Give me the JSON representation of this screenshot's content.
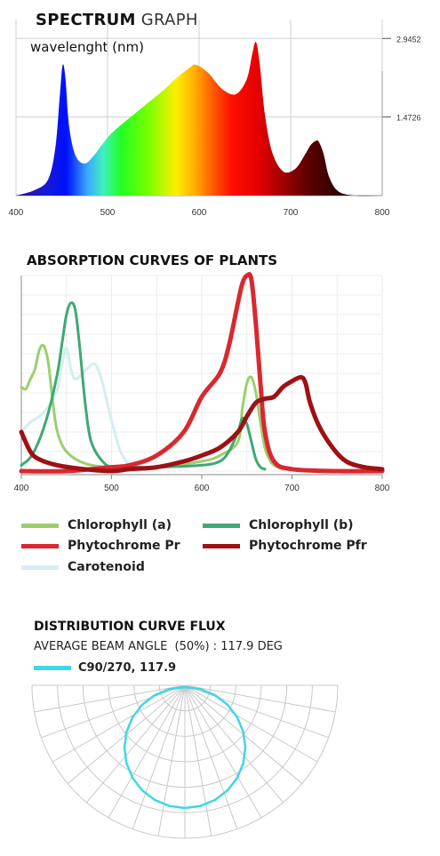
{
  "spectrum": {
    "title_bold": "SPECTRUM",
    "title_rest": " GRAPH",
    "subtitle": "wavelenght (nm)",
    "chart_data": {
      "type": "area",
      "title": "SPECTRUM GRAPH",
      "xlabel": "wavelenght (nm)",
      "xlim": [
        400,
        800
      ],
      "ylim": [
        0,
        3.3
      ],
      "grid": true,
      "x_ticks": [
        "400",
        "500",
        "600",
        "700",
        "800"
      ],
      "y_ticks": [
        {
          "value": 1.4726,
          "label": "1.4726"
        },
        {
          "value": 2.9452,
          "label": "2.9452"
        }
      ],
      "x": [
        400,
        420,
        435,
        443,
        448,
        451,
        454,
        458,
        465,
        475,
        485,
        495,
        505,
        520,
        540,
        560,
        575,
        590,
        597,
        610,
        625,
        640,
        652,
        658,
        662,
        666,
        672,
        680,
        692,
        705,
        715,
        722,
        728,
        731,
        736,
        742,
        752,
        770,
        800
      ],
      "y": [
        0,
        0.1,
        0.3,
        0.9,
        1.9,
        2.45,
        2.2,
        1.3,
        0.75,
        0.6,
        0.75,
        0.98,
        1.18,
        1.4,
        1.68,
        1.96,
        2.2,
        2.4,
        2.45,
        2.3,
        2.0,
        1.9,
        2.18,
        2.65,
        2.88,
        2.5,
        1.5,
        0.8,
        0.45,
        0.5,
        0.75,
        0.95,
        1.03,
        1.0,
        0.78,
        0.35,
        0.08,
        0,
        0
      ]
    }
  },
  "absorption": {
    "title": "ABSORPTION CURVES OF PLANTS",
    "chart_data": {
      "type": "line",
      "title": "ABSORPTION CURVES OF PLANTS",
      "xlim": [
        400,
        800
      ],
      "ylim": [
        0,
        1
      ],
      "grid": true,
      "x_ticks": [
        "400",
        "500",
        "600",
        "700",
        "800"
      ],
      "series": [
        {
          "name": "Chlorophyll (a)",
          "color": "#9bcf6e",
          "x": [
            400,
            405,
            410,
            415,
            420,
            425,
            430,
            435,
            440,
            450,
            470,
            500,
            550,
            600,
            620,
            640,
            645,
            650,
            655,
            660,
            665,
            670,
            675,
            680,
            690
          ],
          "y": [
            0.43,
            0.42,
            0.47,
            0.52,
            0.62,
            0.64,
            0.55,
            0.35,
            0.2,
            0.1,
            0.04,
            0.02,
            0.02,
            0.05,
            0.08,
            0.15,
            0.32,
            0.45,
            0.48,
            0.4,
            0.25,
            0.12,
            0.06,
            0.03,
            0.01
          ]
        },
        {
          "name": "Chlorophyll (b)",
          "color": "#3fa874",
          "x": [
            400,
            410,
            420,
            430,
            440,
            445,
            450,
            455,
            460,
            465,
            470,
            475,
            480,
            490,
            500,
            520,
            550,
            600,
            620,
            630,
            640,
            645,
            650,
            655,
            660,
            665,
            670
          ],
          "y": [
            0.03,
            0.07,
            0.16,
            0.3,
            0.5,
            0.65,
            0.8,
            0.86,
            0.82,
            0.62,
            0.38,
            0.2,
            0.12,
            0.05,
            0.02,
            0.02,
            0.02,
            0.03,
            0.05,
            0.1,
            0.2,
            0.27,
            0.24,
            0.15,
            0.06,
            0.02,
            0.01
          ]
        },
        {
          "name": "Phytochrome Pr",
          "color": "#d9282f",
          "x": [
            400,
            450,
            500,
            520,
            550,
            580,
            600,
            620,
            630,
            640,
            645,
            650,
            655,
            660,
            665,
            670,
            680,
            700,
            750,
            800
          ],
          "y": [
            0.0,
            0.0,
            0.02,
            0.03,
            0.08,
            0.2,
            0.38,
            0.5,
            0.64,
            0.86,
            0.96,
            1.0,
            0.98,
            0.75,
            0.45,
            0.2,
            0.05,
            0.01,
            0.0,
            0.0
          ]
        },
        {
          "name": "Phytochrome Pfr",
          "color": "#9e1014",
          "x": [
            400,
            410,
            420,
            440,
            470,
            500,
            520,
            550,
            580,
            600,
            620,
            640,
            650,
            660,
            670,
            680,
            690,
            700,
            710,
            715,
            720,
            730,
            745,
            760,
            780,
            800
          ],
          "y": [
            0.2,
            0.1,
            0.06,
            0.03,
            0.01,
            0.0,
            0.01,
            0.02,
            0.05,
            0.08,
            0.12,
            0.2,
            0.28,
            0.35,
            0.37,
            0.38,
            0.43,
            0.46,
            0.48,
            0.45,
            0.35,
            0.23,
            0.12,
            0.05,
            0.02,
            0.01
          ]
        },
        {
          "name": "Carotenoid",
          "color": "#d3eef0",
          "x": [
            400,
            410,
            420,
            430,
            440,
            445,
            450,
            455,
            460,
            470,
            480,
            485,
            490,
            500,
            510,
            520
          ],
          "y": [
            0.2,
            0.25,
            0.28,
            0.33,
            0.42,
            0.54,
            0.63,
            0.52,
            0.47,
            0.51,
            0.55,
            0.52,
            0.45,
            0.26,
            0.1,
            0.03
          ]
        }
      ]
    },
    "legend": [
      {
        "label": "Chlorophyll (a)",
        "color": "#9bcf6e"
      },
      {
        "label": "Chlorophyll (b)",
        "color": "#3fa874"
      },
      {
        "label": "Phytochrome Pr",
        "color": "#d9282f"
      },
      {
        "label": "Phytochrome Pfr",
        "color": "#9e1014"
      },
      {
        "label": "Carotenoid",
        "color": "#d3eef0"
      }
    ]
  },
  "flux": {
    "title": "DISTRIBUTION CURVE FLUX",
    "subtitle": "AVERAGE BEAM ANGLE  (50%) : 117.9 DEG",
    "legend_label": "C90/270, 117.9",
    "legend_color": "#3fd7e3",
    "chart_data": {
      "type": "polar",
      "beam_angle_deg": 117.9,
      "series": [
        {
          "name": "C90/270, 117.9",
          "color": "#3fd7e3"
        }
      ]
    }
  }
}
